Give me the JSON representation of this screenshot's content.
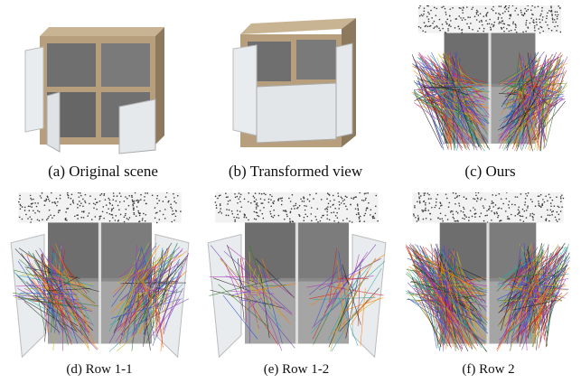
{
  "figure": {
    "panels": [
      {
        "id": "a",
        "kind": "wood",
        "caption": "(a) Original scene"
      },
      {
        "id": "b",
        "kind": "wood-closed",
        "caption": "(b) Transformed view"
      },
      {
        "id": "c",
        "kind": "matches",
        "caption": "(c) Ours"
      },
      {
        "id": "d",
        "kind": "matches",
        "caption": "(d) Row 1-1"
      },
      {
        "id": "e",
        "kind": "matches",
        "caption": "(e) Row 1-2"
      },
      {
        "id": "f",
        "kind": "matches",
        "caption": "(f) Row 2"
      }
    ],
    "colors": {
      "wood": "#b79f7d",
      "wood_dark": "#8d7a5e",
      "door_white": "#e9ecee",
      "interior_gray": "#7c7c7c",
      "speckle": "#3a3a3a",
      "match_palette": [
        "#1e1e1e",
        "#2b7a2b",
        "#d02424",
        "#2a4fd6",
        "#b432b4",
        "#2aa5a5",
        "#c8b41e",
        "#ff7a00",
        "#6a3db8"
      ]
    }
  }
}
